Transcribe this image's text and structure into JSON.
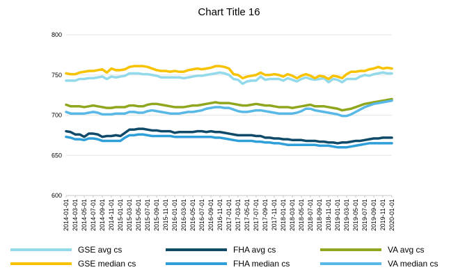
{
  "chart_data": {
    "type": "line",
    "title": "Chart Title 16",
    "xlabel": "",
    "ylabel": "",
    "ylim": [
      600,
      800
    ],
    "yticks": [
      600,
      650,
      700,
      750,
      800
    ],
    "grid": true,
    "legend_position": "bottom",
    "x": [
      "2014-01-01",
      "2014-02-01",
      "2014-03-01",
      "2014-04-01",
      "2014-05-01",
      "2014-06-01",
      "2014-07-01",
      "2014-08-01",
      "2014-09-01",
      "2014-10-01",
      "2014-11-01",
      "2014-12-01",
      "2015-01-01",
      "2015-02-01",
      "2015-03-01",
      "2015-04-01",
      "2015-05-01",
      "2015-06-01",
      "2015-07-01",
      "2015-08-01",
      "2015-09-01",
      "2015-10-01",
      "2015-11-01",
      "2015-12-01",
      "2016-01-01",
      "2016-02-01",
      "2016-03-01",
      "2016-04-01",
      "2016-05-01",
      "2016-06-01",
      "2016-07-01",
      "2016-08-01",
      "2016-09-01",
      "2016-10-01",
      "2016-11-01",
      "2016-12-01",
      "2017-01-01",
      "2017-02-01",
      "2017-03-01",
      "2017-04-01",
      "2017-05-01",
      "2017-06-01",
      "2017-07-01",
      "2017-08-01",
      "2017-09-01",
      "2017-10-01",
      "2017-11-01",
      "2017-12-01",
      "2018-01-01",
      "2018-02-01",
      "2018-03-01",
      "2018-04-01",
      "2018-05-01",
      "2018-06-01",
      "2018-07-01",
      "2018-08-01",
      "2018-09-01",
      "2018-10-01",
      "2018-11-01",
      "2018-12-01",
      "2019-01-01",
      "2019-02-01",
      "2019-03-01",
      "2019-04-01",
      "2019-05-01",
      "2019-06-01",
      "2019-07-01",
      "2019-08-01",
      "2019-09-01",
      "2019-10-01",
      "2019-11-01",
      "2019-12-01",
      "2020-01-01"
    ],
    "tick_labels": [
      "2014-01-01",
      "2014-03-01",
      "2014-05-01",
      "2014-07-01",
      "2014-09-01",
      "2014-11-01",
      "2015-01-01",
      "2015-03-01",
      "2015-05-01",
      "2015-07-01",
      "2015-09-01",
      "2015-11-01",
      "2016-01-01",
      "2016-03-01",
      "2016-05-01",
      "2016-07-01",
      "2016-09-01",
      "2016-11-01",
      "2017-01-01",
      "2017-03-01",
      "2017-05-01",
      "2017-07-01",
      "2017-09-01",
      "2017-11-01",
      "2018-01-01",
      "2018-03-01",
      "2018-05-01",
      "2018-07-01",
      "2018-09-01",
      "2018-11-01",
      "2019-01-01",
      "2019-03-01",
      "2019-05-01",
      "2019-07-01",
      "2019-09-01",
      "2019-11-01",
      "2020-01-01"
    ],
    "series": [
      {
        "name": "GSE avg cs",
        "color": "#92d9ea",
        "values": [
          743,
          743,
          743,
          745,
          745,
          746,
          746,
          747,
          748,
          745,
          748,
          747,
          748,
          749,
          752,
          752,
          752,
          751,
          751,
          750,
          749,
          747,
          747,
          747,
          747,
          747,
          746,
          747,
          748,
          749,
          749,
          750,
          751,
          752,
          753,
          752,
          750,
          745,
          744,
          739,
          742,
          743,
          743,
          748,
          744,
          745,
          745,
          745,
          743,
          746,
          744,
          742,
          745,
          747,
          745,
          744,
          745,
          746,
          741,
          745,
          744,
          741,
          745,
          745,
          745,
          748,
          750,
          749,
          751,
          752,
          753,
          752,
          752
        ]
      },
      {
        "name": "GSE median cs",
        "color": "#f7c200",
        "values": [
          752,
          751,
          751,
          753,
          754,
          755,
          755,
          756,
          757,
          753,
          758,
          756,
          756,
          757,
          760,
          761,
          761,
          761,
          760,
          758,
          756,
          755,
          755,
          754,
          755,
          754,
          754,
          756,
          757,
          758,
          757,
          758,
          759,
          761,
          761,
          760,
          758,
          751,
          750,
          746,
          748,
          749,
          750,
          753,
          750,
          750,
          751,
          750,
          748,
          751,
          749,
          746,
          749,
          751,
          749,
          746,
          749,
          748,
          745,
          749,
          748,
          746,
          751,
          754,
          754,
          755,
          755,
          757,
          758,
          760,
          758,
          759,
          758
        ]
      },
      {
        "name": "FHA avg cs",
        "color": "#0f4a68",
        "values": [
          680,
          679,
          676,
          676,
          673,
          677,
          677,
          676,
          673,
          674,
          674,
          675,
          674,
          678,
          682,
          682,
          683,
          683,
          682,
          681,
          681,
          680,
          680,
          680,
          678,
          679,
          679,
          679,
          679,
          680,
          680,
          679,
          680,
          679,
          679,
          678,
          677,
          676,
          675,
          675,
          675,
          675,
          674,
          674,
          672,
          672,
          671,
          671,
          670,
          670,
          669,
          669,
          669,
          668,
          668,
          668,
          667,
          667,
          666,
          666,
          665,
          666,
          666,
          667,
          668,
          668,
          669,
          670,
          671,
          671,
          672,
          672,
          672
        ]
      },
      {
        "name": "FHA median cs",
        "color": "#2e9fd8",
        "values": [
          673,
          672,
          670,
          670,
          669,
          671,
          671,
          670,
          668,
          668,
          668,
          668,
          668,
          672,
          675,
          675,
          676,
          676,
          675,
          674,
          674,
          674,
          674,
          674,
          673,
          673,
          673,
          673,
          673,
          673,
          673,
          673,
          673,
          672,
          672,
          671,
          670,
          669,
          668,
          668,
          668,
          668,
          667,
          667,
          666,
          666,
          665,
          665,
          664,
          663,
          663,
          663,
          663,
          663,
          663,
          663,
          662,
          662,
          662,
          661,
          660,
          660,
          660,
          661,
          662,
          663,
          664,
          665,
          665,
          665,
          665,
          665,
          665
        ]
      },
      {
        "name": "VA avg cs",
        "color": "#8fa61f",
        "values": [
          713,
          711,
          711,
          711,
          710,
          711,
          712,
          711,
          710,
          709,
          709,
          710,
          710,
          710,
          712,
          712,
          711,
          711,
          713,
          714,
          714,
          713,
          712,
          711,
          710,
          710,
          710,
          711,
          712,
          712,
          713,
          714,
          715,
          716,
          715,
          715,
          715,
          714,
          713,
          712,
          712,
          713,
          714,
          713,
          712,
          712,
          711,
          710,
          710,
          710,
          709,
          710,
          711,
          712,
          713,
          711,
          711,
          711,
          710,
          709,
          708,
          706,
          707,
          708,
          710,
          712,
          714,
          715,
          716,
          717,
          718,
          719,
          720
        ]
      },
      {
        "name": "VA median cs",
        "color": "#58b8e6",
        "values": [
          704,
          702,
          702,
          702,
          702,
          703,
          704,
          703,
          701,
          701,
          701,
          702,
          702,
          702,
          704,
          704,
          703,
          703,
          705,
          706,
          705,
          704,
          703,
          702,
          702,
          702,
          703,
          704,
          704,
          705,
          706,
          708,
          709,
          710,
          710,
          709,
          709,
          707,
          705,
          704,
          704,
          705,
          706,
          706,
          705,
          704,
          703,
          702,
          702,
          702,
          702,
          703,
          705,
          708,
          708,
          706,
          705,
          704,
          703,
          702,
          701,
          699,
          699,
          701,
          704,
          707,
          710,
          712,
          714,
          715,
          716,
          717,
          718
        ]
      }
    ]
  }
}
